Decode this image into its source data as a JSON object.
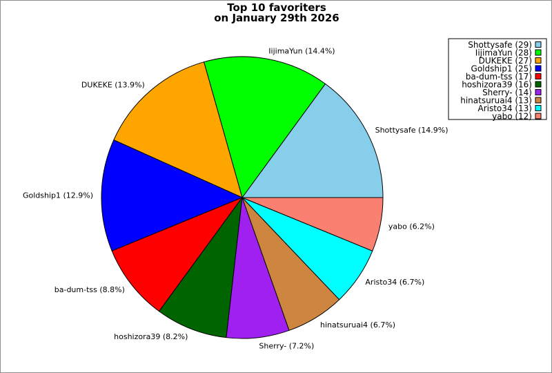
{
  "chart_data": {
    "type": "pie",
    "title": "Top 10 favoriters",
    "subtitle": "on January 29th 2026",
    "slices": [
      {
        "name": "Shottysafe",
        "value": 29,
        "percent_label": "Shottysafe (14.9%)",
        "legend_label": "Shottysafe (29)",
        "color": "#87ceeb"
      },
      {
        "name": "IijimaYun",
        "value": 28,
        "percent_label": "IijimaYun (14.4%)",
        "legend_label": "IijimaYun (28)",
        "color": "#00ff00"
      },
      {
        "name": "DUKEKE",
        "value": 27,
        "percent_label": "DUKEKE (13.9%)",
        "legend_label": "DUKEKE (27)",
        "color": "#ffa500"
      },
      {
        "name": "Goldship1",
        "value": 25,
        "percent_label": "Goldship1 (12.9%)",
        "legend_label": "Goldship1 (25)",
        "color": "#0000ff"
      },
      {
        "name": "ba-dum-tss",
        "value": 17,
        "percent_label": "ba-dum-tss (8.8%)",
        "legend_label": "ba-dum-tss (17)",
        "color": "#ff0000"
      },
      {
        "name": "hoshizora39",
        "value": 16,
        "percent_label": "hoshizora39 (8.2%)",
        "legend_label": "hoshizora39 (16)",
        "color": "#006400"
      },
      {
        "name": "Sherry-",
        "value": 14,
        "percent_label": "Sherry- (7.2%)",
        "legend_label": "Sherry- (14)",
        "color": "#a020f0"
      },
      {
        "name": "hinatsuruai4",
        "value": 13,
        "percent_label": "hinatsuruai4 (6.7%)",
        "legend_label": "hinatsuruai4 (13)",
        "color": "#cd853f"
      },
      {
        "name": "Aristo34",
        "value": 13,
        "percent_label": "Aristo34 (6.7%)",
        "legend_label": "Aristo34 (13)",
        "color": "#00ffff"
      },
      {
        "name": "yabo",
        "value": 12,
        "percent_label": "yabo (6.2%)",
        "legend_label": "yabo (12)",
        "color": "#fa8072"
      }
    ],
    "start_angle": "3 o'clock",
    "direction": "counterclockwise",
    "legend_position": "top-right"
  }
}
